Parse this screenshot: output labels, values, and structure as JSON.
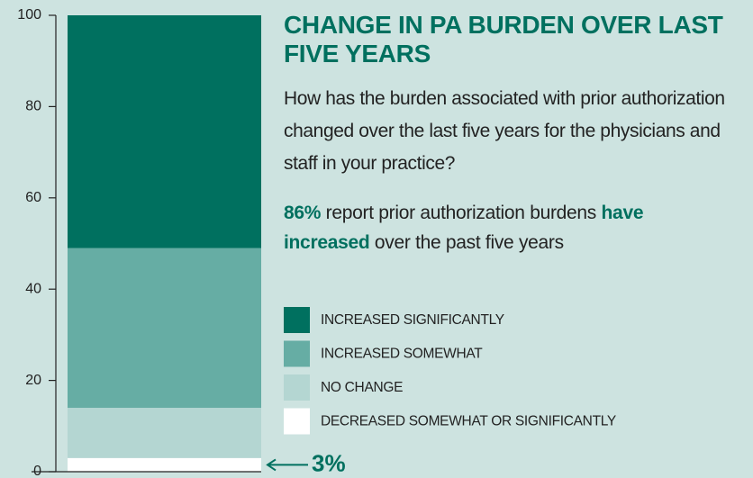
{
  "chart_data": {
    "type": "stacked_bar",
    "title": "CHANGE IN PA BURDEN OVER LAST FIVE YEARS",
    "subtitle": "How has the burden associated with prior authorization changed over the last five years for the physicians and staff in your practice?",
    "annotation": [
      "86%",
      " report prior authorization burdens ",
      "have increased",
      " over the past five years"
    ],
    "categories": [
      null
    ],
    "series": [
      {
        "name": "DECREASED SOMEWHAT OR SIGNIFICANTLY",
        "color": "#ffffff",
        "values": [
          3
        ],
        "value_labels": [
          "3%"
        ]
      },
      {
        "name": "NO CHANGE",
        "color": "#b4d6d2",
        "values": [
          11
        ]
      },
      {
        "name": "INCREASED SOMEWHAT",
        "color": "#66ada4",
        "values": [
          35
        ]
      },
      {
        "name": "INCREASED SIGNIFICANTLY",
        "color": "#00705f",
        "values": [
          51
        ]
      }
    ],
    "ylim": [
      0,
      100
    ],
    "yticks": [
      0,
      20,
      40,
      60,
      80,
      100
    ]
  }
}
